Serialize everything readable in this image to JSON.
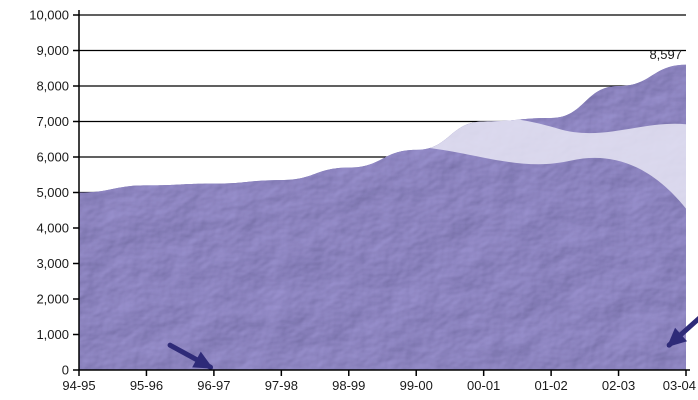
{
  "chart_data": {
    "type": "area",
    "title": "",
    "xlabel": "",
    "ylabel": "",
    "categories": [
      "94-95",
      "95-96",
      "96-97",
      "97-98",
      "98-99",
      "99-00",
      "00-01",
      "01-02",
      "02-03",
      "03-04"
    ],
    "values": [
      5000,
      5200,
      5250,
      5350,
      5700,
      6200,
      7000,
      7100,
      8000,
      8597
    ],
    "ylim": [
      0,
      10000
    ],
    "yticks": [
      "0",
      "1,000",
      "2,000",
      "3,000",
      "4,000",
      "5,000",
      "6,000",
      "7,000",
      "8,000",
      "9,000",
      "10,000"
    ],
    "grid": true,
    "legend": "none",
    "annotation": {
      "category": "03-04",
      "text": "8,597"
    },
    "colors": {
      "fill": "#6a64a8",
      "fill_light": "#8e89c4",
      "highlight": "#e8e6f5",
      "dark": "#3b3580",
      "arrow": "#2e2a78"
    }
  }
}
